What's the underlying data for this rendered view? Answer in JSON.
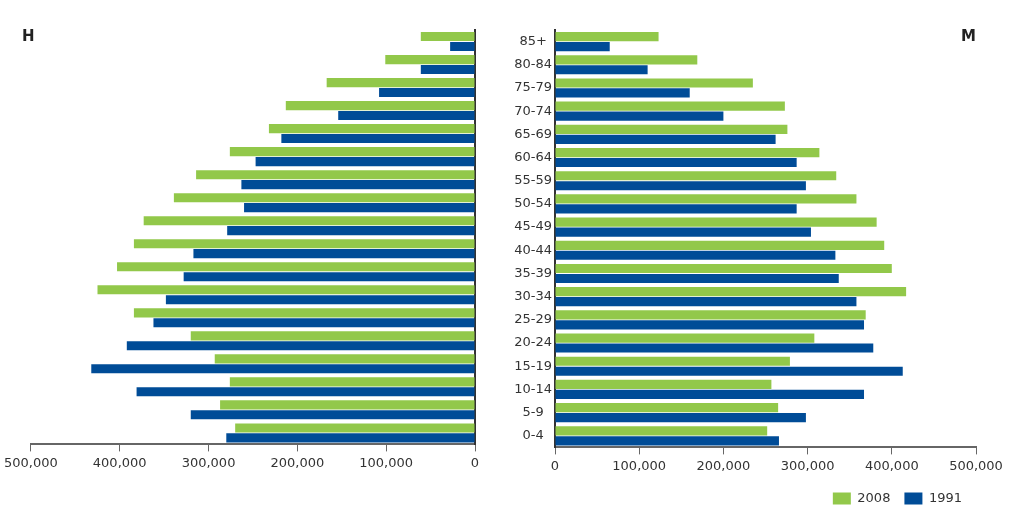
{
  "chart_data": [
    {
      "type": "bar",
      "title": "H",
      "orientation": "horizontal",
      "tick_labels": "x",
      "legend": false,
      "categories": [
        null,
        null,
        null,
        null,
        null,
        null,
        null,
        null,
        null,
        null,
        null,
        null,
        null,
        null,
        null,
        null,
        null,
        null
      ],
      "xlim": [
        500000,
        0
      ],
      "xticks": [
        {
          "value": 500000,
          "label": "500,000"
        },
        {
          "value": 400000,
          "label": "400,000"
        },
        {
          "value": 300000,
          "label": "300,000"
        },
        {
          "value": 200000,
          "label": "200,000"
        },
        {
          "value": 100000,
          "label": "100,000"
        },
        0
      ],
      "series": [
        {
          "color": "#92c84a",
          "values": [
            61000,
            101000,
            167000,
            213000,
            232000,
            276000,
            314000,
            339000,
            373000,
            384000,
            403000,
            425000,
            384000,
            320000,
            293000,
            276000,
            287000,
            270000
          ]
        },
        {
          "color": "#004c97",
          "values": [
            28000,
            61000,
            108000,
            154000,
            218000,
            247000,
            263000,
            260000,
            279000,
            317000,
            328000,
            348000,
            362000,
            392000,
            432000,
            381000,
            320000,
            280000
          ]
        }
      ]
    },
    {
      "type": "bar",
      "title": "M",
      "orientation": "horizontal",
      "legend": "bottom right",
      "categories": [
        "85+",
        "80-84",
        "75-79",
        "70-74",
        "65-69",
        "60-64",
        "55-59",
        "50-54",
        "45-49",
        "40-44",
        "35-39",
        "30-34",
        "25-29",
        "20-24",
        "15-19",
        "10-14",
        "5-9",
        "0-4"
      ],
      "xlim": [
        0,
        500000
      ],
      "xticks": [
        0,
        {
          "value": 100000,
          "label": "100,000"
        },
        {
          "value": 200000,
          "label": "200,000"
        },
        {
          "value": 300000,
          "label": "300,000"
        },
        {
          "value": 400000,
          "label": "400,000"
        },
        {
          "value": 500000,
          "label": "500,000"
        }
      ],
      "series": [
        {
          "name": "2008",
          "color": "#92c84a",
          "values": [
            123000,
            169000,
            235000,
            273000,
            276000,
            314000,
            334000,
            358000,
            382000,
            391000,
            400000,
            417000,
            369000,
            308000,
            279000,
            257000,
            265000,
            252000
          ]
        },
        {
          "name": "1991",
          "color": "#004c97",
          "values": [
            65000,
            110000,
            160000,
            200000,
            262000,
            287000,
            298000,
            287000,
            304000,
            333000,
            337000,
            358000,
            367000,
            378000,
            413000,
            367000,
            298000,
            266000
          ]
        }
      ]
    }
  ]
}
